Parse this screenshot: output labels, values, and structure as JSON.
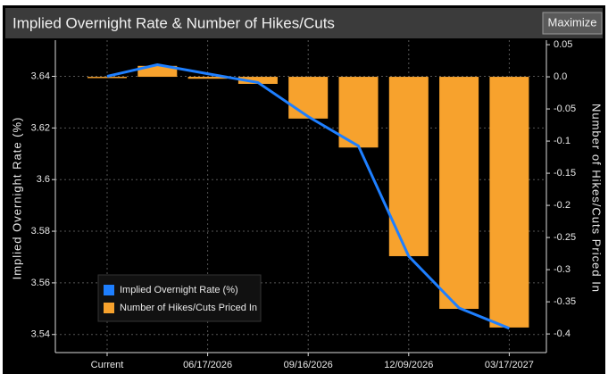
{
  "chart_data": {
    "type": "bar",
    "title": "Implied Overnight Rate & Number of Hikes/Cuts",
    "button": "Maximize",
    "y_label": "Implied Overnight Rate (%)",
    "y2_label": "Number of Hikes/Cuts Priced In",
    "categories": [
      "Current",
      null,
      "06/17/2026",
      null,
      "09/16/2026",
      null,
      "12/09/2026",
      null,
      "03/17/2027"
    ],
    "series": [
      {
        "name": "Implied Overnight Rate (%)",
        "type": "line",
        "color": "#1e7fff",
        "axis": "y",
        "values": [
          3.64,
          3.6445,
          3.641,
          3.6376,
          3.6244,
          3.613,
          3.5703,
          3.5503,
          3.5424
        ]
      },
      {
        "name": "Number of Hikes/Cuts Priced In",
        "type": "bar",
        "color": "#f7a22d",
        "axis": "y2",
        "values": [
          -0.002,
          0.017,
          -0.003,
          -0.011,
          -0.065,
          -0.11,
          -0.279,
          -0.361,
          -0.39
        ]
      }
    ],
    "ylim": [
      3.533,
      3.654
    ],
    "yticks": [
      3.54,
      3.56,
      3.58,
      3.6,
      3.62,
      3.64
    ],
    "y2lim": [
      -0.429,
      0.057
    ],
    "y2ticks": [
      0.05,
      {
        "value": 0,
        "label": "0.0"
      },
      -0.05,
      -0.1,
      -0.15,
      -0.2,
      -0.25,
      -0.3,
      -0.35,
      -0.4
    ],
    "grid": true,
    "legend": "lower-left"
  }
}
